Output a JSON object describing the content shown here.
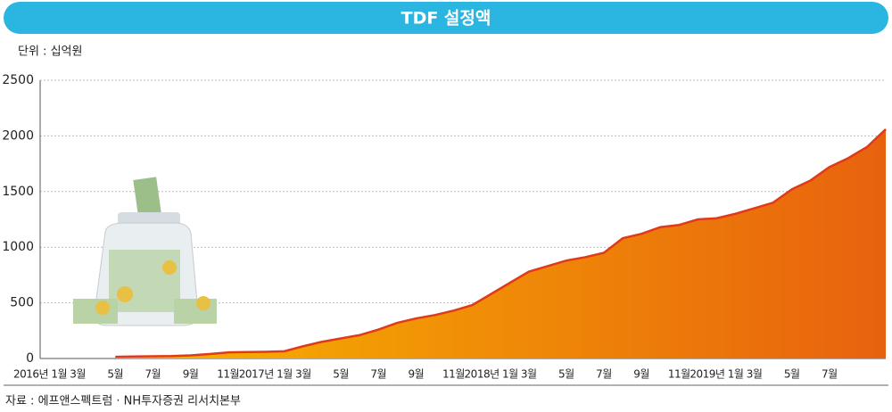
{
  "chart_data": {
    "type": "area",
    "title": "TDF 설정액",
    "subtitle": "단위 : 십억원",
    "source": "자료 : 에프앤스펙트럼 · NH투자증권 리서치본부",
    "categories": [
      "2016년 1월",
      null,
      "3월",
      null,
      "5월",
      null,
      "7월",
      null,
      "9월",
      null,
      "11월",
      null,
      "2017년 1월",
      null,
      "3월",
      null,
      "5월",
      null,
      "7월",
      null,
      "9월",
      null,
      "11월",
      null,
      "2018년 1월",
      null,
      "3월",
      null,
      "5월",
      null,
      "7월",
      null,
      "9월",
      null,
      "11월",
      null,
      "2019년 1월",
      null,
      "3월",
      null,
      "5월",
      null,
      "7월",
      null,
      null,
      null
    ],
    "values": [
      null,
      null,
      null,
      null,
      15,
      18,
      20,
      22,
      28,
      40,
      55,
      58,
      60,
      65,
      110,
      150,
      180,
      210,
      260,
      320,
      360,
      390,
      430,
      480,
      580,
      680,
      780,
      830,
      880,
      910,
      950,
      1080,
      1120,
      1180,
      1200,
      1250,
      1260,
      1300,
      1350,
      1400,
      1520,
      1600,
      1720,
      1800,
      1900,
      2060
    ],
    "ylim": [
      0,
      2500
    ],
    "yticks": [
      0,
      500,
      1000,
      1500,
      2000,
      2500
    ],
    "grid": true,
    "colors": [
      "#f7b500",
      "#e8620e"
    ],
    "line_color": "#e03a1a",
    "title_color": "#2bb6e2"
  }
}
